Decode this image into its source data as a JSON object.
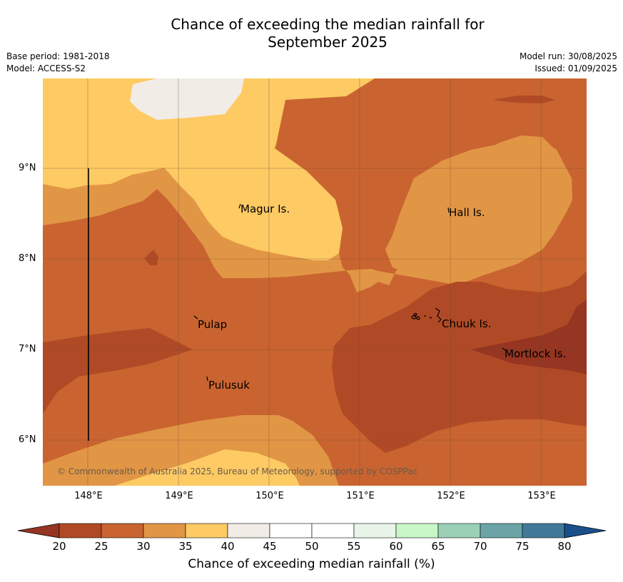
{
  "title_line1": "Chance of exceeding the median rainfall for",
  "title_line2": "September 2025",
  "base_period": "Base period: 1981-2018",
  "model": "Model: ACCESS-S2",
  "model_run": "Model run: 30/08/2025",
  "issued": "Issued: 01/09/2025",
  "copyright": "© Commonwealth of Australia 2025, Bureau of Meteorology, supported by COSPPac",
  "lat_labels": [
    "9°N",
    "8°N",
    "7°N",
    "6°N"
  ],
  "lon_labels": [
    "148°E",
    "149°E",
    "150°E",
    "151°E",
    "152°E",
    "153°E"
  ],
  "places": {
    "magur": "Magur Is.",
    "hall": "Hall Is.",
    "pulap": "Pulap",
    "chuuk": "Chuuk Is.",
    "mortlock": "Mortlock Is.",
    "pulusuk": "Pulusuk"
  },
  "colorbar": {
    "title": "Chance of exceeding median rainfall (%)",
    "ticks": [
      "20",
      "25",
      "30",
      "35",
      "40",
      "45",
      "50",
      "55",
      "60",
      "65",
      "70",
      "75",
      "80"
    ],
    "colors": [
      "#b04a26",
      "#c96430",
      "#e19645",
      "#fdca64",
      "#f1ece6",
      "#ffffff",
      "#ffffff",
      "#eaf5ea",
      "#c8f7c8",
      "#9bd0b6",
      "#6aa4a6",
      "#417a99"
    ],
    "under_color": "#963522",
    "over_color": "#1a4f8c"
  }
}
